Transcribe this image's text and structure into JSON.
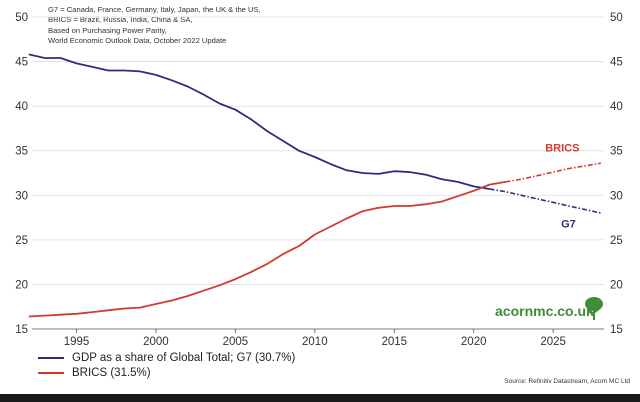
{
  "notes": [
    "G7 = Canada, France, Germany, Italy, Japan, the UK & the US,",
    "BRICS = Brazil, Russia, India, China & SA,",
    "Based on Purchasing Power Parity,",
    "World Economic Outlook Data, October 2022 Update"
  ],
  "legend": [
    {
      "label": "GDP as a share of Global Total; G7 (30.7%)",
      "color": "#2b2f7a"
    },
    {
      "label": "BRICS (31.5%)",
      "color": "#d23a2e"
    }
  ],
  "source": "Source: Refinitiv Datastream, Acorn MC Ltd",
  "brand": "acornmc.co.uk",
  "chart_data": {
    "type": "line",
    "xlim": [
      1992.2,
      2028.2
    ],
    "ylim": [
      15,
      50
    ],
    "x_ticks": [
      "1995",
      "2000",
      "2005",
      "2010",
      "2015",
      "2020",
      "2025"
    ],
    "x_tick_values": [
      1995,
      2000,
      2005,
      2010,
      2015,
      2020,
      2025
    ],
    "y_ticks": [
      "15",
      "20",
      "25",
      "30",
      "35",
      "40",
      "45",
      "50"
    ],
    "y_tick_values": [
      15,
      20,
      25,
      30,
      35,
      40,
      45,
      50
    ],
    "grid": true,
    "legend_position": "bottom-left",
    "series": [
      {
        "name": "G7",
        "color": "#2b2f7a",
        "points": [
          [
            1992,
            45.8
          ],
          [
            1993,
            45.4
          ],
          [
            1994,
            45.4
          ],
          [
            1995,
            44.8
          ],
          [
            1996,
            44.4
          ],
          [
            1997,
            44.0
          ],
          [
            1998,
            44.0
          ],
          [
            1999,
            43.9
          ],
          [
            2000,
            43.5
          ],
          [
            2001,
            42.9
          ],
          [
            2002,
            42.2
          ],
          [
            2003,
            41.3
          ],
          [
            2004,
            40.3
          ],
          [
            2005,
            39.6
          ],
          [
            2006,
            38.5
          ],
          [
            2007,
            37.2
          ],
          [
            2008,
            36.1
          ],
          [
            2009,
            35.0
          ],
          [
            2010,
            34.3
          ],
          [
            2011,
            33.5
          ],
          [
            2012,
            32.8
          ],
          [
            2013,
            32.5
          ],
          [
            2014,
            32.4
          ],
          [
            2015,
            32.7
          ],
          [
            2016,
            32.6
          ],
          [
            2017,
            32.3
          ],
          [
            2018,
            31.8
          ],
          [
            2019,
            31.5
          ],
          [
            2020,
            31.0
          ],
          [
            2021,
            30.7
          ]
        ],
        "projection": [
          [
            2021,
            30.7
          ],
          [
            2022,
            30.4
          ],
          [
            2023,
            30.0
          ],
          [
            2024,
            29.6
          ],
          [
            2025,
            29.2
          ],
          [
            2026,
            28.8
          ],
          [
            2027,
            28.4
          ],
          [
            2028,
            28.0
          ]
        ]
      },
      {
        "name": "BRICS",
        "color": "#d23a2e",
        "points": [
          [
            1992,
            16.4
          ],
          [
            1993,
            16.5
          ],
          [
            1994,
            16.6
          ],
          [
            1995,
            16.7
          ],
          [
            1996,
            16.9
          ],
          [
            1997,
            17.1
          ],
          [
            1998,
            17.3
          ],
          [
            1999,
            17.4
          ],
          [
            2000,
            17.8
          ],
          [
            2001,
            18.2
          ],
          [
            2002,
            18.7
          ],
          [
            2003,
            19.3
          ],
          [
            2004,
            19.9
          ],
          [
            2005,
            20.6
          ],
          [
            2006,
            21.4
          ],
          [
            2007,
            22.3
          ],
          [
            2008,
            23.4
          ],
          [
            2009,
            24.3
          ],
          [
            2010,
            25.6
          ],
          [
            2011,
            26.5
          ],
          [
            2012,
            27.4
          ],
          [
            2013,
            28.2
          ],
          [
            2014,
            28.6
          ],
          [
            2015,
            28.8
          ],
          [
            2016,
            28.8
          ],
          [
            2017,
            29.0
          ],
          [
            2018,
            29.3
          ],
          [
            2019,
            29.9
          ],
          [
            2020,
            30.5
          ],
          [
            2021,
            31.2
          ],
          [
            2022,
            31.5
          ]
        ],
        "projection": [
          [
            2022,
            31.5
          ],
          [
            2023,
            31.8
          ],
          [
            2024,
            32.2
          ],
          [
            2025,
            32.6
          ],
          [
            2026,
            33.0
          ],
          [
            2027,
            33.3
          ],
          [
            2028,
            33.6
          ]
        ]
      }
    ],
    "annotations": [
      {
        "text": "BRICS",
        "series": 1
      },
      {
        "text": "G7",
        "series": 0
      }
    ]
  }
}
